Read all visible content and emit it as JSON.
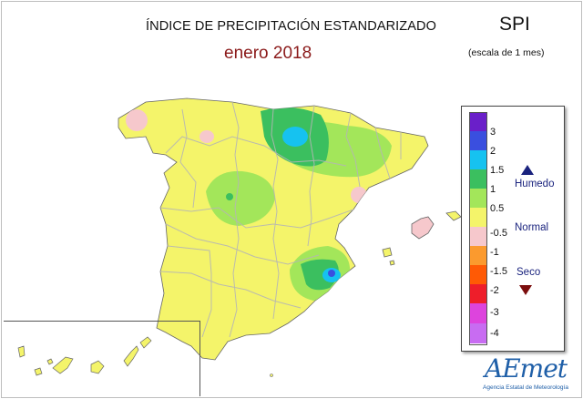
{
  "header": {
    "title": "ÍNDICE DE PRECIPITACIÓN ESTANDARIZADO",
    "subtitle": "enero 2018",
    "index_name": "SPI",
    "index_scale": "(escala de 1 mes)"
  },
  "legend": {
    "levels": [
      "3",
      "2",
      "1.5",
      "1",
      "0.5",
      "-0.5",
      "-1",
      "-1.5",
      "-2",
      "-3",
      "-4"
    ],
    "colors": [
      "#6a1fc9",
      "#3a4fdf",
      "#16c2f0",
      "#3bbf5f",
      "#a3e65a",
      "#f4f46a",
      "#f6c8cc",
      "#fb9a2e",
      "#ff5a05",
      "#ee1e2a",
      "#dd44dd",
      "#c86cf2"
    ],
    "categories": {
      "wet": "Humedo",
      "normal": "Normal",
      "dry": "Seco"
    }
  },
  "map": {
    "base_color": "#f4f46a",
    "border_color": "#b5b5b5",
    "sea_color": "#ffffff"
  },
  "logo": {
    "text": "AEmet",
    "subtitle": "Agencia Estatal de Meteorología"
  }
}
